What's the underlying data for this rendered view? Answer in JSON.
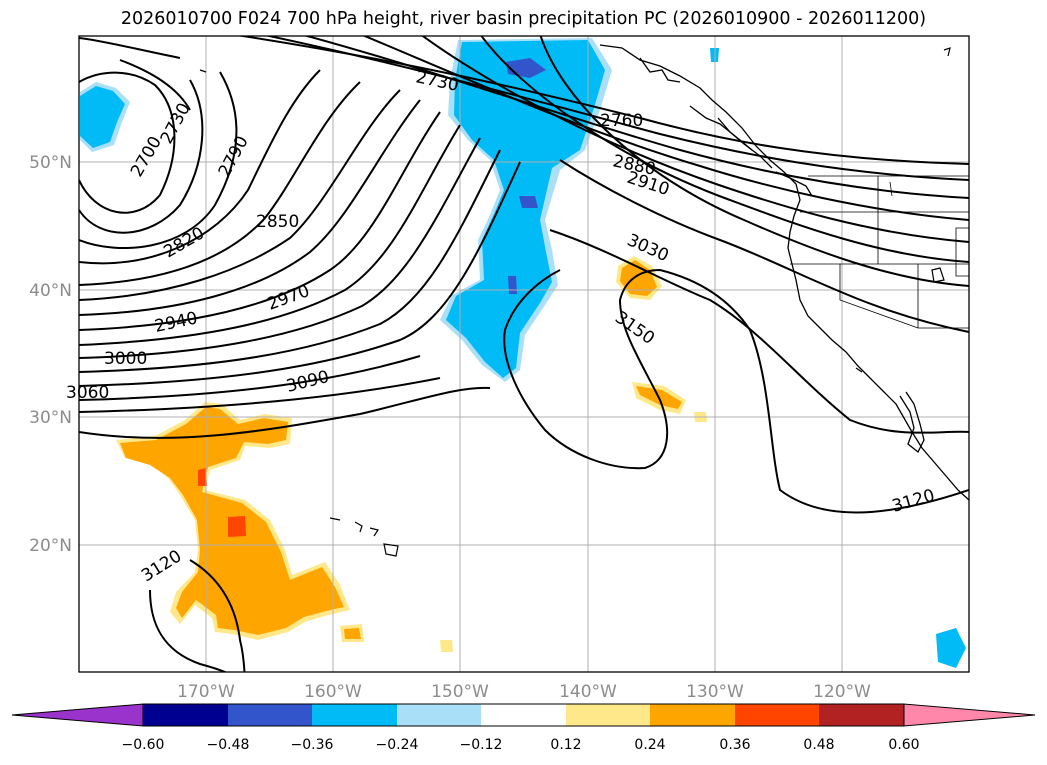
{
  "title": "2026010700 F024 700 hPa height, river basin precipitation PC (2026010900 - 2026011200)",
  "lat_labels": [
    "50°N",
    "40°N",
    "30°N",
    "20°N"
  ],
  "lon_labels": [
    "170°W",
    "160°W",
    "150°W",
    "140°W",
    "130°W",
    "120°W"
  ],
  "contour_labels": [
    "2700",
    "2730",
    "2730",
    "2760",
    "2790",
    "2820",
    "2850",
    "2880",
    "2910",
    "2940",
    "2970",
    "3000",
    "3030",
    "3060",
    "3090",
    "3120",
    "3120",
    "3150"
  ],
  "colorbar": {
    "ticks": [
      "−0.60",
      "−0.48",
      "−0.36",
      "−0.24",
      "−0.12",
      "0.12",
      "0.24",
      "0.36",
      "0.48",
      "0.60"
    ],
    "colors": [
      "#9933cc",
      "#000090",
      "#3355cc",
      "#00bbf5",
      "#aadff8",
      "#ffffff",
      "#ffe88a",
      "#ffa500",
      "#ff4500",
      "#b22222",
      "#ff88aa"
    ]
  }
}
